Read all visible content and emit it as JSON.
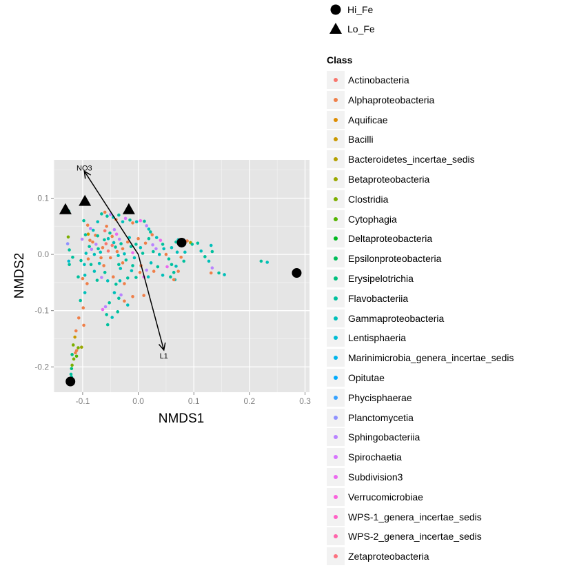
{
  "chart_data": {
    "type": "scatter",
    "xlabel": "NMDS1",
    "ylabel": "NMDS2",
    "xlim": [
      -0.152,
      0.308
    ],
    "ylim": [
      -0.245,
      0.168
    ],
    "x_ticks": [
      -0.1,
      0.0,
      0.1,
      0.2,
      0.3
    ],
    "x_tick_labels": [
      "-0.1",
      "0.0",
      "0.1",
      "0.2",
      "0.3"
    ],
    "y_ticks": [
      -0.2,
      -0.1,
      0.0,
      0.1
    ],
    "y_tick_labels": [
      "-0.2",
      "-0.1",
      "0.0",
      "0.1"
    ],
    "grid": true,
    "legend_position": "right",
    "shape_legend": [
      {
        "label": "Hi_Fe",
        "shape": "circle"
      },
      {
        "label": "Lo_Fe",
        "shape": "triangle"
      }
    ],
    "sites": [
      {
        "group": "Hi_Fe",
        "x": 0.078,
        "y": 0.021
      },
      {
        "group": "Hi_Fe",
        "x": 0.285,
        "y": -0.033
      },
      {
        "group": "Hi_Fe",
        "x": -0.122,
        "y": -0.226
      },
      {
        "group": "Lo_Fe",
        "x": -0.131,
        "y": 0.08
      },
      {
        "group": "Lo_Fe",
        "x": -0.096,
        "y": 0.095
      },
      {
        "group": "Lo_Fe",
        "x": -0.017,
        "y": 0.08
      }
    ],
    "vectors": [
      {
        "label": "NO3",
        "x": -0.097,
        "y": 0.148
      },
      {
        "label": "L1",
        "x": 0.046,
        "y": -0.17
      }
    ],
    "color_legend_title": "Class",
    "classes": [
      {
        "name": "Actinobacteria",
        "color": "#F8766D"
      },
      {
        "name": "Alphaproteobacteria",
        "color": "#EF7F49"
      },
      {
        "name": "Aquificae",
        "color": "#DE8C00"
      },
      {
        "name": "Bacilli",
        "color": "#C99800"
      },
      {
        "name": "Bacteroidetes_incertae_sedis",
        "color": "#B3A000"
      },
      {
        "name": "Betaproteobacteria",
        "color": "#99A800"
      },
      {
        "name": "Clostridia",
        "color": "#7CAE00"
      },
      {
        "name": "Cytophagia",
        "color": "#53B400"
      },
      {
        "name": "Deltaproteobacteria",
        "color": "#00B81F"
      },
      {
        "name": "Epsilonproteobacteria",
        "color": "#00BC59"
      },
      {
        "name": "Erysipelotrichia",
        "color": "#00BF7D"
      },
      {
        "name": "Flavobacteriia",
        "color": "#00C09D"
      },
      {
        "name": "Gammaproteobacteria",
        "color": "#00BFB9"
      },
      {
        "name": "Lentisphaeria",
        "color": "#00BCD4"
      },
      {
        "name": "Marinimicrobia_genera_incertae_sedis",
        "color": "#00B5EB"
      },
      {
        "name": "Opitutae",
        "color": "#00ABFD"
      },
      {
        "name": "Phycisphaerae",
        "color": "#35A2FF"
      },
      {
        "name": "Planctomycetia",
        "color": "#8F91FF"
      },
      {
        "name": "Sphingobacteriia",
        "color": "#B983FF"
      },
      {
        "name": "Spirochaetia",
        "color": "#D774FD"
      },
      {
        "name": "Subdivision3",
        "color": "#EB6AEF"
      },
      {
        "name": "Verrucomicrobiae",
        "color": "#F962DD"
      },
      {
        "name": "WPS-1_genera_incertae_sedis",
        "color": "#FF61C6"
      },
      {
        "name": "WPS-2_genera_incertae_sedis",
        "color": "#FF64AB"
      },
      {
        "name": "Zetaproteobacteria",
        "color": "#FC717F"
      }
    ],
    "points": [
      {
        "x": -0.125,
        "y": 0.077,
        "c": 11
      },
      {
        "x": -0.126,
        "y": 0.031,
        "c": 6
      },
      {
        "x": -0.127,
        "y": 0.019,
        "c": 17
      },
      {
        "x": -0.124,
        "y": 0.008,
        "c": 11
      },
      {
        "x": -0.125,
        "y": -0.012,
        "c": 13
      },
      {
        "x": -0.124,
        "y": -0.018,
        "c": 11
      },
      {
        "x": -0.118,
        "y": -0.005,
        "c": 11
      },
      {
        "x": -0.108,
        "y": -0.04,
        "c": 11
      },
      {
        "x": -0.1,
        "y": -0.043,
        "c": 1
      },
      {
        "x": -0.096,
        "y": -0.037,
        "c": 12
      },
      {
        "x": -0.092,
        "y": -0.052,
        "c": 1
      },
      {
        "x": -0.096,
        "y": -0.068,
        "c": 12
      },
      {
        "x": -0.104,
        "y": -0.082,
        "c": 11
      },
      {
        "x": -0.099,
        "y": -0.095,
        "c": 1
      },
      {
        "x": -0.107,
        "y": -0.113,
        "c": 1
      },
      {
        "x": -0.098,
        "y": -0.126,
        "c": 1
      },
      {
        "x": -0.112,
        "y": -0.136,
        "c": 1
      },
      {
        "x": -0.114,
        "y": -0.147,
        "c": 3
      },
      {
        "x": -0.117,
        "y": -0.161,
        "c": 6
      },
      {
        "x": -0.108,
        "y": -0.166,
        "c": 6
      },
      {
        "x": -0.102,
        "y": -0.165,
        "c": 5
      },
      {
        "x": -0.111,
        "y": -0.171,
        "c": 1
      },
      {
        "x": -0.113,
        "y": -0.175,
        "c": 1
      },
      {
        "x": -0.119,
        "y": -0.178,
        "c": 10
      },
      {
        "x": -0.111,
        "y": -0.181,
        "c": 7
      },
      {
        "x": -0.116,
        "y": -0.186,
        "c": 6
      },
      {
        "x": -0.119,
        "y": -0.197,
        "c": 6
      },
      {
        "x": -0.12,
        "y": -0.203,
        "c": 10
      },
      {
        "x": -0.121,
        "y": -0.213,
        "c": 11
      },
      {
        "x": -0.12,
        "y": -0.218,
        "c": 11
      },
      {
        "x": -0.098,
        "y": 0.06,
        "c": 11
      },
      {
        "x": -0.091,
        "y": 0.052,
        "c": 1
      },
      {
        "x": -0.086,
        "y": 0.046,
        "c": 18
      },
      {
        "x": -0.09,
        "y": 0.036,
        "c": 3
      },
      {
        "x": -0.081,
        "y": 0.043,
        "c": 12
      },
      {
        "x": -0.077,
        "y": 0.034,
        "c": 1
      },
      {
        "x": -0.073,
        "y": 0.058,
        "c": 12
      },
      {
        "x": -0.066,
        "y": 0.072,
        "c": 11
      },
      {
        "x": -0.06,
        "y": 0.075,
        "c": 1
      },
      {
        "x": -0.056,
        "y": 0.068,
        "c": 11
      },
      {
        "x": -0.05,
        "y": 0.071,
        "c": 18
      },
      {
        "x": -0.045,
        "y": 0.066,
        "c": 12
      },
      {
        "x": -0.04,
        "y": 0.062,
        "c": 1
      },
      {
        "x": -0.035,
        "y": 0.07,
        "c": 11
      },
      {
        "x": -0.028,
        "y": 0.058,
        "c": 12
      },
      {
        "x": -0.023,
        "y": 0.064,
        "c": 19
      },
      {
        "x": -0.015,
        "y": 0.061,
        "c": 11
      },
      {
        "x": -0.01,
        "y": 0.056,
        "c": 1
      },
      {
        "x": -0.003,
        "y": 0.058,
        "c": 12
      },
      {
        "x": 0.004,
        "y": 0.06,
        "c": 20
      },
      {
        "x": 0.011,
        "y": 0.059,
        "c": 11
      },
      {
        "x": 0.015,
        "y": 0.051,
        "c": 18
      },
      {
        "x": 0.019,
        "y": 0.045,
        "c": 12
      },
      {
        "x": 0.022,
        "y": 0.04,
        "c": 11
      },
      {
        "x": 0.025,
        "y": 0.035,
        "c": 1
      },
      {
        "x": 0.033,
        "y": 0.03,
        "c": 12
      },
      {
        "x": 0.04,
        "y": 0.025,
        "c": 20
      },
      {
        "x": 0.044,
        "y": 0.018,
        "c": 11
      },
      {
        "x": 0.046,
        "y": 0.01,
        "c": 12
      },
      {
        "x": 0.05,
        "y": 0.0,
        "c": 1
      },
      {
        "x": 0.055,
        "y": -0.008,
        "c": 11
      },
      {
        "x": 0.06,
        "y": 0.012,
        "c": 12
      },
      {
        "x": 0.068,
        "y": 0.022,
        "c": 11
      },
      {
        "x": 0.072,
        "y": 0.026,
        "c": 12
      },
      {
        "x": 0.088,
        "y": 0.024,
        "c": 1
      },
      {
        "x": 0.094,
        "y": 0.021,
        "c": 4
      },
      {
        "x": 0.097,
        "y": 0.018,
        "c": 11
      },
      {
        "x": 0.07,
        "y": 0.004,
        "c": 12
      },
      {
        "x": 0.077,
        "y": -0.005,
        "c": 1
      },
      {
        "x": 0.082,
        "y": -0.012,
        "c": 11
      },
      {
        "x": 0.068,
        "y": -0.021,
        "c": 12
      },
      {
        "x": 0.064,
        "y": -0.032,
        "c": 11
      },
      {
        "x": 0.072,
        "y": -0.03,
        "c": 1
      },
      {
        "x": 0.066,
        "y": -0.045,
        "c": 12
      },
      {
        "x": 0.058,
        "y": -0.04,
        "c": 11
      },
      {
        "x": 0.044,
        "y": -0.037,
        "c": 12
      },
      {
        "x": 0.035,
        "y": -0.022,
        "c": 11
      },
      {
        "x": 0.028,
        "y": -0.03,
        "c": 1
      },
      {
        "x": 0.018,
        "y": -0.04,
        "c": 12
      },
      {
        "x": 0.01,
        "y": -0.04,
        "c": 20
      },
      {
        "x": 0.003,
        "y": -0.032,
        "c": 1
      },
      {
        "x": -0.004,
        "y": -0.041,
        "c": 11
      },
      {
        "x": -0.012,
        "y": -0.029,
        "c": 12
      },
      {
        "x": -0.019,
        "y": -0.042,
        "c": 11
      },
      {
        "x": -0.025,
        "y": -0.052,
        "c": 1
      },
      {
        "x": -0.033,
        "y": -0.047,
        "c": 12
      },
      {
        "x": -0.04,
        "y": -0.053,
        "c": 11
      },
      {
        "x": -0.045,
        "y": -0.04,
        "c": 1
      },
      {
        "x": -0.055,
        "y": -0.047,
        "c": 12
      },
      {
        "x": -0.06,
        "y": -0.032,
        "c": 11
      },
      {
        "x": -0.066,
        "y": -0.041,
        "c": 18
      },
      {
        "x": -0.074,
        "y": -0.046,
        "c": 11
      },
      {
        "x": -0.079,
        "y": -0.03,
        "c": 12
      },
      {
        "x": -0.085,
        "y": -0.018,
        "c": 11
      },
      {
        "x": -0.09,
        "y": -0.008,
        "c": 1
      },
      {
        "x": -0.094,
        "y": 0.002,
        "c": 12
      },
      {
        "x": -0.088,
        "y": 0.014,
        "c": 11
      },
      {
        "x": -0.082,
        "y": 0.022,
        "c": 1
      },
      {
        "x": -0.076,
        "y": 0.018,
        "c": 18
      },
      {
        "x": -0.072,
        "y": 0.01,
        "c": 11
      },
      {
        "x": -0.068,
        "y": 0.004,
        "c": 12
      },
      {
        "x": -0.064,
        "y": 0.012,
        "c": 1
      },
      {
        "x": -0.061,
        "y": 0.026,
        "c": 11
      },
      {
        "x": -0.058,
        "y": 0.019,
        "c": 0
      },
      {
        "x": -0.054,
        "y": 0.028,
        "c": 12
      },
      {
        "x": -0.051,
        "y": 0.038,
        "c": 11
      },
      {
        "x": -0.047,
        "y": 0.032,
        "c": 1
      },
      {
        "x": -0.044,
        "y": 0.021,
        "c": 12
      },
      {
        "x": -0.041,
        "y": 0.013,
        "c": 11
      },
      {
        "x": -0.038,
        "y": 0.005,
        "c": 1
      },
      {
        "x": -0.036,
        "y": -0.002,
        "c": 12
      },
      {
        "x": -0.034,
        "y": 0.027,
        "c": 18
      },
      {
        "x": -0.031,
        "y": 0.019,
        "c": 11
      },
      {
        "x": -0.028,
        "y": 0.01,
        "c": 1
      },
      {
        "x": -0.025,
        "y": 0.001,
        "c": 12
      },
      {
        "x": -0.022,
        "y": -0.01,
        "c": 11
      },
      {
        "x": -0.019,
        "y": 0.022,
        "c": 1
      },
      {
        "x": -0.016,
        "y": 0.03,
        "c": 12
      },
      {
        "x": -0.013,
        "y": 0.014,
        "c": 11
      },
      {
        "x": -0.01,
        "y": 0.003,
        "c": 20
      },
      {
        "x": -0.007,
        "y": -0.006,
        "c": 12
      },
      {
        "x": -0.004,
        "y": 0.018,
        "c": 11
      },
      {
        "x": 0.0,
        "y": 0.028,
        "c": 1
      },
      {
        "x": 0.004,
        "y": 0.012,
        "c": 12
      },
      {
        "x": 0.008,
        "y": 0.002,
        "c": 11
      },
      {
        "x": -0.06,
        "y": 0.042,
        "c": 0
      },
      {
        "x": -0.057,
        "y": 0.05,
        "c": 1
      },
      {
        "x": -0.054,
        "y": 0.006,
        "c": 0
      },
      {
        "x": -0.05,
        "y": -0.006,
        "c": 1
      },
      {
        "x": -0.047,
        "y": 0.016,
        "c": 0
      },
      {
        "x": -0.043,
        "y": 0.044,
        "c": 18
      },
      {
        "x": -0.039,
        "y": 0.036,
        "c": 20
      },
      {
        "x": -0.035,
        "y": -0.018,
        "c": 11
      },
      {
        "x": -0.032,
        "y": -0.025,
        "c": 12
      },
      {
        "x": -0.028,
        "y": -0.015,
        "c": 1
      },
      {
        "x": -0.067,
        "y": -0.006,
        "c": 1
      },
      {
        "x": -0.07,
        "y": -0.016,
        "c": 12
      },
      {
        "x": -0.073,
        "y": 0.033,
        "c": 11
      },
      {
        "x": -0.079,
        "y": 0.0,
        "c": 12
      },
      {
        "x": -0.084,
        "y": 0.009,
        "c": 18
      },
      {
        "x": -0.062,
        "y": -0.02,
        "c": 1
      },
      {
        "x": -0.031,
        "y": -0.072,
        "c": 18
      },
      {
        "x": -0.035,
        "y": -0.078,
        "c": 11
      },
      {
        "x": -0.025,
        "y": -0.083,
        "c": 1
      },
      {
        "x": -0.043,
        "y": -0.068,
        "c": 12
      },
      {
        "x": -0.052,
        "y": -0.086,
        "c": 11
      },
      {
        "x": -0.059,
        "y": -0.093,
        "c": 18
      },
      {
        "x": -0.064,
        "y": -0.098,
        "c": 20
      },
      {
        "x": -0.057,
        "y": -0.107,
        "c": 11
      },
      {
        "x": -0.047,
        "y": -0.112,
        "c": 12
      },
      {
        "x": -0.037,
        "y": -0.102,
        "c": 11
      },
      {
        "x": -0.019,
        "y": -0.09,
        "c": 12
      },
      {
        "x": -0.01,
        "y": -0.075,
        "c": 1
      },
      {
        "x": 0.01,
        "y": -0.073,
        "c": 1
      },
      {
        "x": -0.055,
        "y": -0.125,
        "c": 11
      },
      {
        "x": -0.097,
        "y": -0.018,
        "c": 12
      },
      {
        "x": -0.103,
        "y": -0.011,
        "c": 11
      },
      {
        "x": -0.101,
        "y": 0.027,
        "c": 18
      },
      {
        "x": -0.095,
        "y": 0.035,
        "c": 11
      },
      {
        "x": -0.087,
        "y": 0.025,
        "c": 1
      },
      {
        "x": -0.01,
        "y": -0.02,
        "c": 11
      },
      {
        "x": 0.005,
        "y": -0.02,
        "c": 1
      },
      {
        "x": 0.015,
        "y": -0.028,
        "c": 18
      },
      {
        "x": 0.023,
        "y": -0.015,
        "c": 12
      },
      {
        "x": 0.027,
        "y": 0.005,
        "c": 11
      },
      {
        "x": 0.032,
        "y": 0.01,
        "c": 18
      },
      {
        "x": 0.038,
        "y": 0.0,
        "c": 12
      },
      {
        "x": 0.013,
        "y": 0.02,
        "c": 1
      },
      {
        "x": 0.019,
        "y": 0.028,
        "c": 11
      },
      {
        "x": 0.026,
        "y": 0.017,
        "c": 18
      },
      {
        "x": 0.107,
        "y": 0.02,
        "c": 11
      },
      {
        "x": 0.113,
        "y": 0.006,
        "c": 12
      },
      {
        "x": 0.12,
        "y": -0.004,
        "c": 11
      },
      {
        "x": 0.131,
        "y": 0.016,
        "c": 12
      },
      {
        "x": 0.133,
        "y": 0.005,
        "c": 11
      },
      {
        "x": 0.127,
        "y": -0.012,
        "c": 12
      },
      {
        "x": 0.133,
        "y": -0.024,
        "c": 18
      },
      {
        "x": 0.131,
        "y": -0.033,
        "c": 1
      },
      {
        "x": 0.145,
        "y": -0.033,
        "c": 11
      },
      {
        "x": 0.155,
        "y": -0.036,
        "c": 12
      },
      {
        "x": 0.221,
        "y": -0.012,
        "c": 11
      },
      {
        "x": 0.232,
        "y": -0.014,
        "c": 12
      },
      {
        "x": 0.064,
        "y": -0.045,
        "c": 1
      },
      {
        "x": 0.052,
        "y": -0.022,
        "c": 20
      },
      {
        "x": 0.06,
        "y": -0.018,
        "c": 11
      },
      {
        "x": 0.084,
        "y": 0.004,
        "c": 12
      }
    ]
  }
}
